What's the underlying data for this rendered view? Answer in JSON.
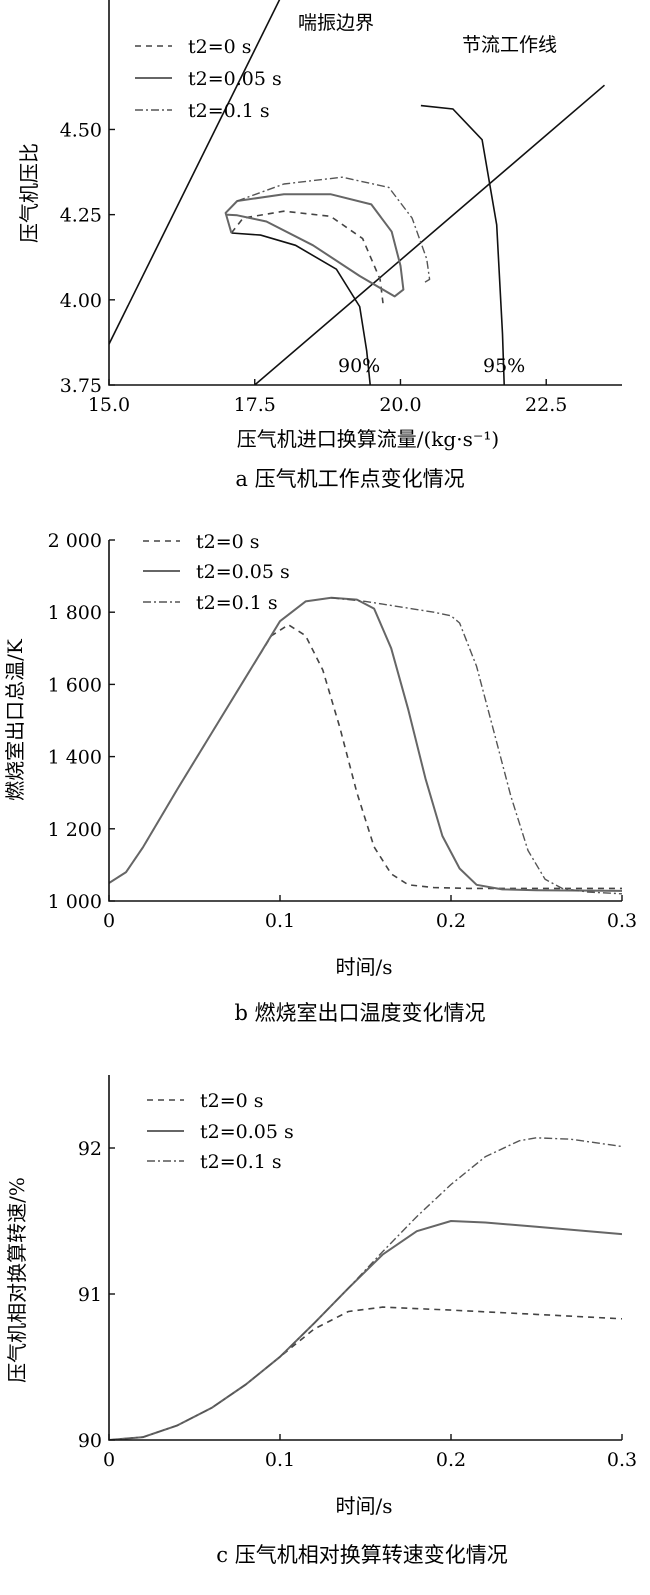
{
  "legend_labels": [
    "t2=0 s",
    "t2=0.05 s",
    "t2=0.1 s"
  ],
  "colors": {
    "s0": "#444444",
    "s1": "#666666",
    "s2": "#555555",
    "frame": "#111111"
  },
  "chart_data": [
    {
      "type": "line",
      "xlabel": "压气机进口换算流量/(kg·s⁻¹)",
      "ylabel": "压气机压比",
      "caption": "a 压气机工作点变化情况",
      "xlim": [
        15.0,
        23.8
      ],
      "ylim": [
        3.75,
        4.88
      ],
      "xticks": [
        15.0,
        17.5,
        20.0,
        22.5
      ],
      "xtick_labels": [
        "15.0",
        "17.5",
        "20.0",
        "22.5"
      ],
      "yticks": [
        3.75,
        4.0,
        4.25,
        4.5
      ],
      "ytick_labels": [
        "3.75",
        "4.00",
        "4.25",
        "4.50"
      ],
      "annotations": {
        "surge": "喘振边界",
        "throttle": "节流工作线",
        "s90": "90%",
        "s95": "95%"
      },
      "reference_lines": [
        {
          "name": "surge",
          "x": [
            15.0,
            24.0
          ],
          "y": [
            3.87,
            6.98
          ]
        },
        {
          "name": "throttle",
          "x": [
            17.5,
            23.5
          ],
          "y": [
            3.75,
            4.63
          ]
        },
        {
          "name": "speed-90",
          "x": [
            17.1,
            17.6,
            18.2,
            18.9,
            19.3,
            19.42,
            19.48
          ],
          "y": [
            4.196,
            4.19,
            4.16,
            4.09,
            3.98,
            3.85,
            3.75
          ]
        },
        {
          "name": "speed-95",
          "x": [
            20.35,
            20.9,
            21.4,
            21.65,
            21.75,
            21.78
          ],
          "y": [
            4.57,
            4.56,
            4.47,
            4.22,
            3.9,
            3.75
          ]
        }
      ],
      "series": [
        {
          "name": "t2=0 s",
          "x": [
            17.1,
            17.3,
            18.0,
            18.8,
            19.35,
            19.65,
            19.7
          ],
          "y": [
            4.196,
            4.24,
            4.26,
            4.245,
            4.18,
            4.06,
            3.99
          ]
        },
        {
          "name": "t2=0.05 s",
          "x": [
            17.1,
            17.0,
            17.2,
            18.0,
            18.8,
            19.5,
            19.85,
            20.0,
            20.05,
            19.9,
            19.3,
            18.5,
            17.7,
            17.2,
            17.0
          ],
          "y": [
            4.196,
            4.255,
            4.29,
            4.31,
            4.31,
            4.28,
            4.2,
            4.1,
            4.03,
            4.01,
            4.07,
            4.16,
            4.23,
            4.248,
            4.25
          ]
        },
        {
          "name": "t2=0.1 s",
          "x": [
            17.2,
            18.0,
            19.0,
            19.8,
            20.2,
            20.45,
            20.5,
            20.4
          ],
          "y": [
            4.29,
            4.34,
            4.36,
            4.33,
            4.24,
            4.12,
            4.06,
            4.05
          ]
        }
      ]
    },
    {
      "type": "line",
      "xlabel": "时间/s",
      "ylabel": "燃烧室出口总温/K",
      "caption": "b 燃烧室出口温度变化情况",
      "xlim": [
        0,
        0.3
      ],
      "ylim": [
        1000,
        2000
      ],
      "xticks": [
        0,
        0.1,
        0.2,
        0.3
      ],
      "xtick_labels": [
        "0",
        "0.1",
        "0.2",
        "0.3"
      ],
      "yticks": [
        1000,
        1200,
        1400,
        1600,
        1800,
        2000
      ],
      "ytick_labels": [
        "1 000",
        "1 200",
        "1 400",
        "1 600",
        "1 800",
        "2 000"
      ],
      "series": [
        {
          "name": "t2=0 s",
          "x": [
            0,
            0.01,
            0.02,
            0.04,
            0.06,
            0.08,
            0.095,
            0.105,
            0.115,
            0.125,
            0.135,
            0.145,
            0.155,
            0.165,
            0.175,
            0.19,
            0.21,
            0.25,
            0.3
          ],
          "y": [
            1050,
            1080,
            1150,
            1310,
            1465,
            1620,
            1735,
            1765,
            1735,
            1640,
            1480,
            1300,
            1150,
            1075,
            1045,
            1037,
            1035,
            1035,
            1035
          ]
        },
        {
          "name": "t2=0.05 s",
          "x": [
            0,
            0.01,
            0.02,
            0.04,
            0.06,
            0.08,
            0.1,
            0.115,
            0.13,
            0.145,
            0.155,
            0.165,
            0.175,
            0.185,
            0.195,
            0.205,
            0.215,
            0.23,
            0.25,
            0.3
          ],
          "y": [
            1050,
            1080,
            1150,
            1310,
            1465,
            1620,
            1775,
            1830,
            1840,
            1835,
            1810,
            1700,
            1530,
            1340,
            1180,
            1090,
            1045,
            1032,
            1030,
            1028
          ]
        },
        {
          "name": "t2=0.1 s",
          "x": [
            0.13,
            0.15,
            0.17,
            0.19,
            0.2,
            0.205,
            0.215,
            0.225,
            0.235,
            0.245,
            0.255,
            0.265,
            0.28,
            0.3
          ],
          "y": [
            1840,
            1830,
            1815,
            1800,
            1790,
            1770,
            1650,
            1470,
            1290,
            1140,
            1060,
            1035,
            1025,
            1020
          ]
        }
      ]
    },
    {
      "type": "line",
      "xlabel": "时间/s",
      "ylabel": "压气机相对换算转速/%",
      "caption": "c 压气机相对换算转速变化情况",
      "xlim": [
        0,
        0.3
      ],
      "ylim": [
        90,
        92.5
      ],
      "xticks": [
        0,
        0.1,
        0.2,
        0.3
      ],
      "xtick_labels": [
        "0",
        "0.1",
        "0.2",
        "0.3"
      ],
      "yticks": [
        90,
        91,
        92
      ],
      "ytick_labels": [
        "90",
        "91",
        "92"
      ],
      "series": [
        {
          "name": "t2=0 s",
          "x": [
            0,
            0.02,
            0.04,
            0.06,
            0.08,
            0.1,
            0.12,
            0.14,
            0.16,
            0.2,
            0.25,
            0.3
          ],
          "y": [
            90,
            90.02,
            90.1,
            90.22,
            90.38,
            90.57,
            90.76,
            90.88,
            90.91,
            90.89,
            90.86,
            90.83
          ]
        },
        {
          "name": "t2=0.05 s",
          "x": [
            0,
            0.02,
            0.04,
            0.06,
            0.08,
            0.1,
            0.12,
            0.14,
            0.16,
            0.18,
            0.2,
            0.22,
            0.25,
            0.3
          ],
          "y": [
            90,
            90.02,
            90.1,
            90.22,
            90.38,
            90.57,
            90.8,
            91.04,
            91.27,
            91.43,
            91.5,
            91.49,
            91.46,
            91.41
          ]
        },
        {
          "name": "t2=0.1 s",
          "x": [
            0,
            0.02,
            0.04,
            0.06,
            0.08,
            0.1,
            0.12,
            0.14,
            0.16,
            0.18,
            0.2,
            0.22,
            0.24,
            0.25,
            0.27,
            0.3
          ],
          "y": [
            90,
            90.02,
            90.1,
            90.22,
            90.38,
            90.57,
            90.8,
            91.04,
            91.29,
            91.53,
            91.75,
            91.94,
            92.05,
            92.07,
            92.06,
            92.01
          ]
        }
      ]
    }
  ]
}
